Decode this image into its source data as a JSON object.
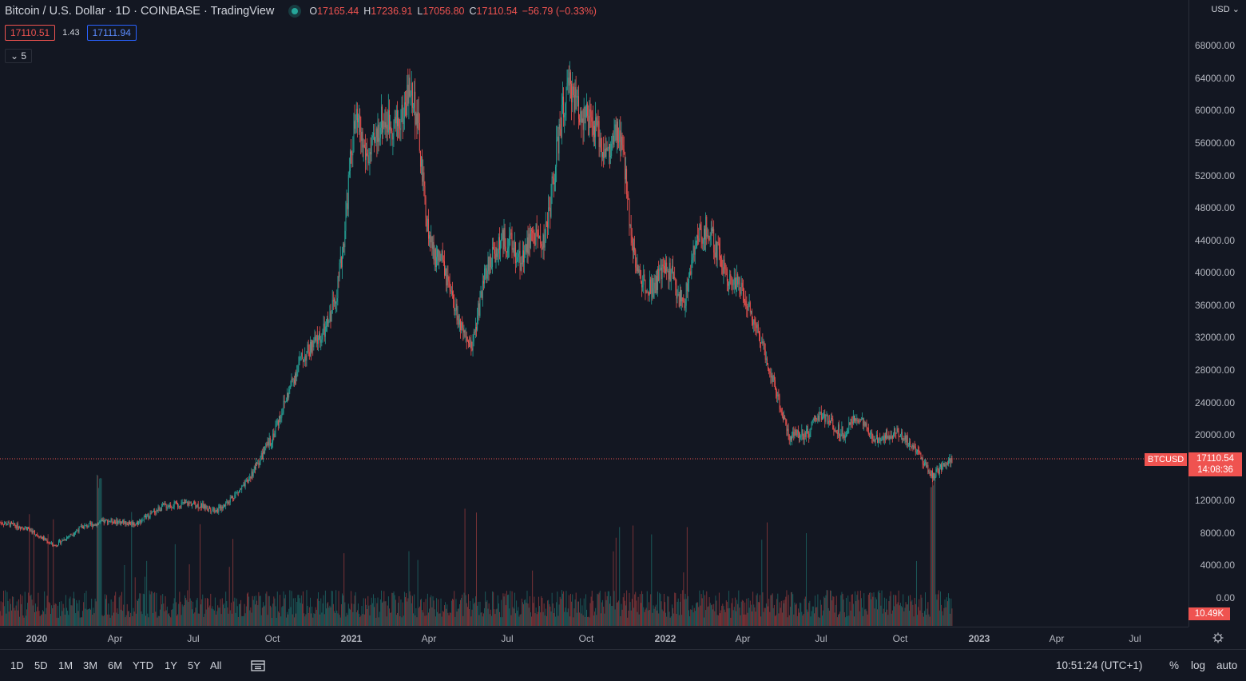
{
  "legend": {
    "title": "Bitcoin / U.S. Dollar · 1D · COINBASE · TradingView",
    "open_key": "O",
    "open": "17165.44",
    "high_key": "H",
    "high": "17236.91",
    "low_key": "L",
    "low": "17056.80",
    "close_key": "C",
    "close": "17110.54",
    "change": "−56.79 (−0.33%)",
    "bid": "17110.51",
    "spread": "1.43",
    "ask": "17111.94",
    "collapsed_count": "5"
  },
  "price_scale": {
    "currency": "USD",
    "labels": [
      "68000.00",
      "64000.00",
      "60000.00",
      "56000.00",
      "52000.00",
      "48000.00",
      "44000.00",
      "40000.00",
      "36000.00",
      "32000.00",
      "28000.00",
      "24000.00",
      "20000.00",
      "12000.00",
      "8000.00",
      "4000.00",
      "0.00"
    ],
    "symbol_badge": "BTCUSD",
    "last_price": "17110.54",
    "countdown": "14:08:36",
    "volume_badge": "10.49K"
  },
  "time_scale": [
    "2020",
    "Apr",
    "Jul",
    "Oct",
    "2021",
    "Apr",
    "Jul",
    "Oct",
    "2022",
    "Apr",
    "Jul",
    "Oct",
    "2023",
    "Apr",
    "Jul"
  ],
  "bottom_toolbar": {
    "ranges": [
      "1D",
      "5D",
      "1M",
      "3M",
      "6M",
      "YTD",
      "1Y",
      "5Y",
      "All"
    ],
    "clock": "10:51:24 (UTC+1)",
    "percent": "%",
    "log": "log",
    "auto": "auto"
  },
  "colors": {
    "up": "#26a69a",
    "down": "#ef5350",
    "background": "#131722",
    "grid": "#2a2e39"
  },
  "chart_data": {
    "type": "candlestick",
    "symbol": "BTCUSD",
    "interval": "1D",
    "ylim": [
      0,
      70000
    ],
    "x": [
      "2020-01",
      "2020-02",
      "2020-03",
      "2020-04",
      "2020-05",
      "2020-06",
      "2020-07",
      "2020-08",
      "2020-09",
      "2020-10",
      "2020-11",
      "2020-12",
      "2021-01",
      "2021-02",
      "2021-03",
      "2021-04",
      "2021-05",
      "2021-06",
      "2021-07",
      "2021-08",
      "2021-09",
      "2021-10",
      "2021-11",
      "2021-12",
      "2022-01",
      "2022-02",
      "2022-03",
      "2022-04",
      "2022-05",
      "2022-06",
      "2022-07",
      "2022-08",
      "2022-09",
      "2022-10",
      "2022-11",
      "2022-12"
    ],
    "close": [
      9300,
      8600,
      6400,
      8700,
      9500,
      9150,
      11300,
      11650,
      10800,
      13800,
      19700,
      29000,
      33100,
      45200,
      58900,
      57700,
      37300,
      35000,
      41500,
      47100,
      43800,
      61300,
      57000,
      46300,
      38500,
      43200,
      45500,
      37700,
      31800,
      19900,
      23300,
      20050,
      19400,
      20500,
      17200,
      17110
    ],
    "volume_note": "volume histogram shown below price; peak near Mar 2020 and Nov 2022"
  }
}
